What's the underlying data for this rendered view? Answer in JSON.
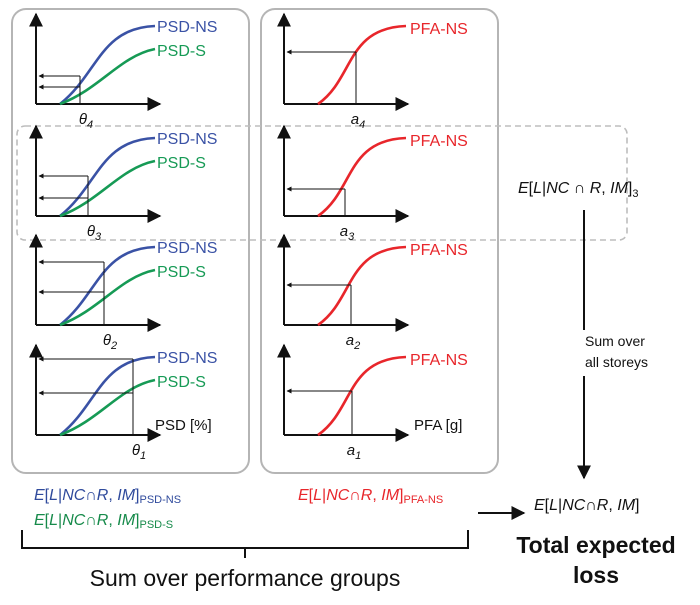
{
  "colors": {
    "psd_ns": "#3a52a5",
    "psd_s": "#169a55",
    "pfa_ns": "#e8262b",
    "panel_border": "#b5b5b5",
    "dash_border": "#bdbdbd",
    "axis": "#111111"
  },
  "psd_panel": {
    "curve_ns": "PSD-NS",
    "curve_s": "PSD-S",
    "axis_label": "PSD [%]",
    "theta_symbol": "θ",
    "storeys": [
      "4",
      "3",
      "2",
      "1"
    ]
  },
  "pfa_panel": {
    "curve_ns": "PFA-NS",
    "axis_label": "PFA [g]",
    "a_symbol": "a",
    "storeys": [
      "4",
      "3",
      "2",
      "1"
    ]
  },
  "right": {
    "storey_loss": {
      "E": "E",
      "bracket_open": "[",
      "L": "L",
      "given": "|",
      "NC": "NC",
      "cap": " ∩ ",
      "R": "R",
      "comma": ", ",
      "IM": "IM",
      "bracket_close": "]",
      "sub": "3"
    },
    "sum_storeys_1": "Sum over",
    "sum_storeys_2": "all storeys",
    "total_loss": {
      "E": "E",
      "bracket_open": "[",
      "L": "L",
      "given": "|",
      "NC": "NC",
      "cap": "∩",
      "R": "R",
      "comma": ", ",
      "IM": "IM",
      "bracket_close": "]"
    },
    "total_title_1": "Total expected",
    "total_title_2": "loss"
  },
  "bottom": {
    "psd_ns_loss": {
      "E": "E",
      "bracket_open": "[",
      "L": "L",
      "given": "|",
      "NC": "NC",
      "cap": "∩",
      "R": "R",
      "comma": ", ",
      "IM": "IM",
      "bracket_close": "]",
      "sub": "PSD-NS"
    },
    "psd_s_loss": {
      "E": "E",
      "bracket_open": "[",
      "L": "L",
      "given": "|",
      "NC": "NC",
      "cap": "∩",
      "R": "R",
      "comma": ", ",
      "IM": "IM",
      "bracket_close": "]",
      "sub": "PSD-S"
    },
    "pfa_ns_loss": {
      "E": "E",
      "bracket_open": "[",
      "L": "L",
      "given": "|",
      "NC": "NC",
      "cap": "∩",
      "R": "R",
      "comma": ", ",
      "IM": "IM",
      "bracket_close": "]",
      "sub": "PFA-NS"
    },
    "sum_groups": "Sum over performance groups"
  }
}
